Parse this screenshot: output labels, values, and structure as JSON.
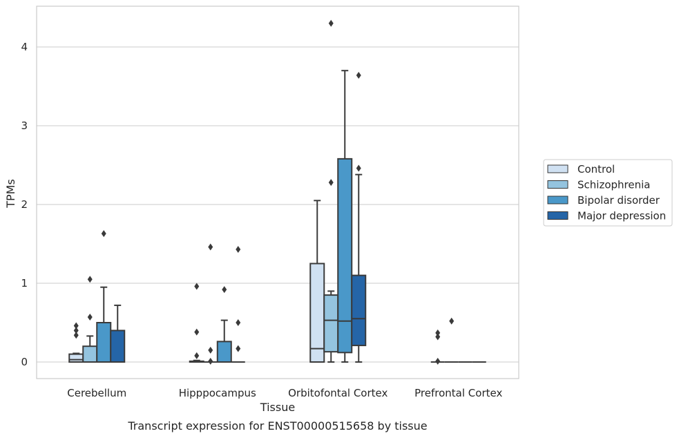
{
  "chart_data": {
    "type": "box",
    "title": "",
    "caption": "Transcript expression for ENST00000515658 by tissue",
    "xlabel": "Tissue",
    "ylabel": "TPMs",
    "ylim": [
      -0.2,
      4.5
    ],
    "yticks": [
      0,
      1,
      2,
      3,
      4
    ],
    "grid": "horizontal",
    "legend_position": "right",
    "categories": [
      "Cerebellum",
      "Hipppocampus",
      "Orbitofontal Cortex",
      "Prefrontal Cortex"
    ],
    "series": [
      {
        "name": "Control",
        "color": "#d0e1f2",
        "boxes": [
          {
            "min": 0,
            "q1": 0,
            "median": 0.03,
            "q3": 0.1,
            "max": 0.11,
            "outliers": [
              0.34,
              0.4,
              0.46
            ]
          },
          {
            "min": 0,
            "q1": 0,
            "median": 0.005,
            "q3": 0.01,
            "max": 0.02,
            "outliers": [
              0.08,
              0.38,
              0.96
            ]
          },
          {
            "min": 0,
            "q1": 0,
            "median": 0.17,
            "q3": 1.25,
            "max": 2.05,
            "outliers": []
          },
          {
            "min": 0,
            "q1": 0,
            "median": 0,
            "q3": 0,
            "max": 0,
            "outliers": [
              0.01,
              0.32,
              0.37
            ]
          }
        ]
      },
      {
        "name": "Schizophrenia",
        "color": "#94c4df",
        "boxes": [
          {
            "min": 0,
            "q1": 0,
            "median": 0,
            "q3": 0.2,
            "max": 0.33,
            "outliers": [
              0.57,
              1.05
            ]
          },
          {
            "min": 0,
            "q1": 0,
            "median": 0,
            "q3": 0,
            "max": 0,
            "outliers": [
              0.01,
              0.15,
              1.46
            ]
          },
          {
            "min": 0,
            "q1": 0.13,
            "median": 0.53,
            "q3": 0.85,
            "max": 0.9,
            "outliers": [
              2.28,
              4.3
            ]
          },
          {
            "min": 0,
            "q1": 0,
            "median": 0,
            "q3": 0,
            "max": 0,
            "outliers": [
              0.52
            ]
          }
        ]
      },
      {
        "name": "Bipolar disorder",
        "color": "#4a98c9",
        "boxes": [
          {
            "min": 0,
            "q1": 0,
            "median": 0,
            "q3": 0.5,
            "max": 0.95,
            "outliers": [
              1.63
            ]
          },
          {
            "min": 0,
            "q1": 0,
            "median": 0,
            "q3": 0.26,
            "max": 0.53,
            "outliers": [
              0.92
            ]
          },
          {
            "min": 0,
            "q1": 0.12,
            "median": 0.52,
            "q3": 2.58,
            "max": 3.7,
            "outliers": []
          },
          {
            "min": 0,
            "q1": 0,
            "median": 0,
            "q3": 0,
            "max": 0,
            "outliers": []
          }
        ]
      },
      {
        "name": "Major depression",
        "color": "#2565a7",
        "boxes": [
          {
            "min": 0,
            "q1": 0,
            "median": 0,
            "q3": 0.4,
            "max": 0.72,
            "outliers": []
          },
          {
            "min": 0,
            "q1": 0,
            "median": 0,
            "q3": 0,
            "max": 0,
            "outliers": [
              0.17,
              0.5,
              1.43
            ]
          },
          {
            "min": 0,
            "q1": 0.21,
            "median": 0.55,
            "q3": 1.1,
            "max": 2.38,
            "outliers": [
              2.46,
              3.64
            ]
          },
          {
            "min": 0,
            "q1": 0,
            "median": 0,
            "q3": 0,
            "max": 0,
            "outliers": []
          }
        ]
      }
    ]
  }
}
